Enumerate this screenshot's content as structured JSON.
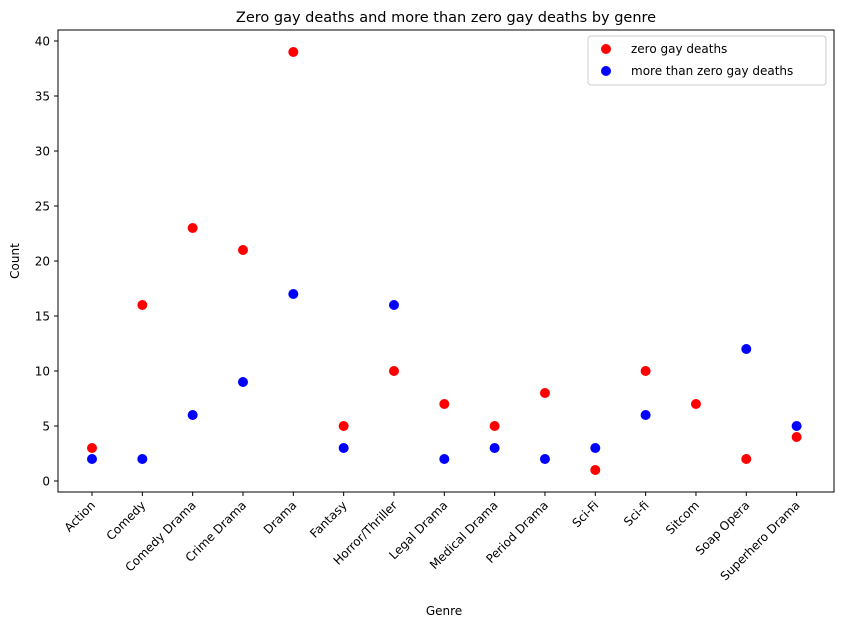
{
  "chart_data": {
    "type": "scatter",
    "title": "Zero gay deaths and more than zero gay deaths by genre",
    "xlabel": "Genre",
    "ylabel": "Count",
    "categories": [
      "Action",
      "Comedy",
      "Comedy Drama",
      "Crime Drama",
      "Drama",
      "Fantasy",
      "Horror/Thriller",
      "Legal Drama",
      "Medical Drama",
      "Period Drama",
      "Sci-Fi",
      "Sci-fi",
      "Sitcom",
      "Soap Opera",
      "Superhero Drama"
    ],
    "series": [
      {
        "name": "zero gay deaths",
        "color": "#ff0000",
        "values": [
          3,
          16,
          23,
          21,
          39,
          5,
          10,
          7,
          5,
          8,
          1,
          10,
          7,
          2,
          4
        ]
      },
      {
        "name": "more than zero gay deaths",
        "color": "#0000ff",
        "values": [
          2,
          2,
          6,
          9,
          17,
          3,
          16,
          2,
          3,
          2,
          3,
          6,
          null,
          12,
          5
        ]
      }
    ],
    "yticks": [
      0,
      5,
      10,
      15,
      20,
      25,
      30,
      35,
      40
    ],
    "ylim": [
      -1,
      41
    ],
    "grid": false,
    "legend_position": "top-right"
  }
}
